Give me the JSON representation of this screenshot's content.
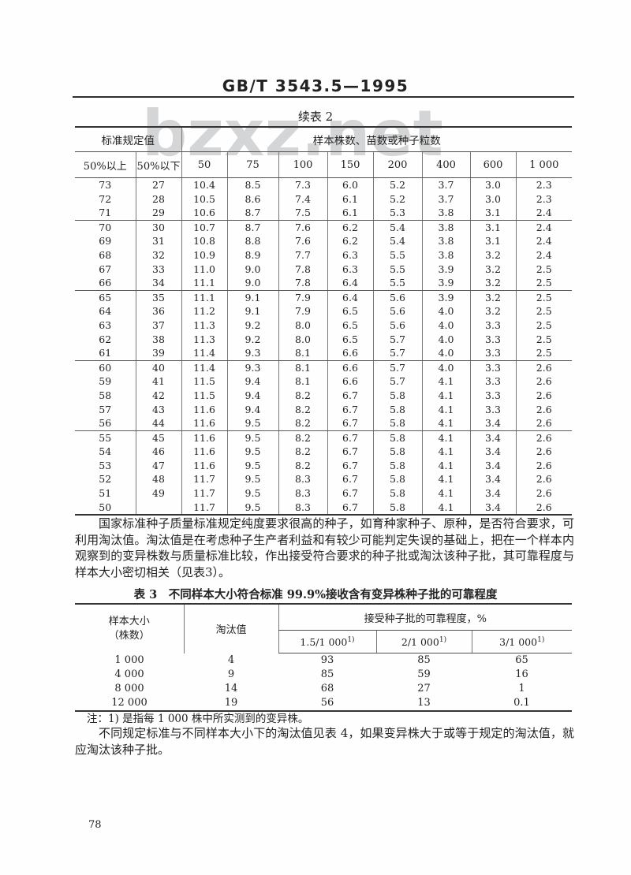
{
  "page": {
    "standard_number": "GB/T 3543.5—1995",
    "page_number": "78",
    "watermark_text": "bzxz.net",
    "watermark_color": "#d4d5d6",
    "text_color": "#222222"
  },
  "table2": {
    "title": "续表 2",
    "group_left": "标准规定值",
    "group_right": "样本株数、苗数或种子粒数",
    "columns": [
      "50%以上",
      "50%以下",
      "50",
      "75",
      "100",
      "150",
      "200",
      "400",
      "600",
      "1 000"
    ],
    "group_breaks": [
      2,
      7,
      12,
      17
    ],
    "rows": [
      [
        "73",
        "27",
        "10.4",
        "8.5",
        "7.3",
        "6.0",
        "5.2",
        "3.7",
        "3.0",
        "2.3"
      ],
      [
        "72",
        "28",
        "10.5",
        "8.6",
        "7.4",
        "6.1",
        "5.2",
        "3.7",
        "3.0",
        "2.3"
      ],
      [
        "71",
        "29",
        "10.6",
        "8.7",
        "7.5",
        "6.1",
        "5.3",
        "3.8",
        "3.1",
        "2.4"
      ],
      [
        "70",
        "30",
        "10.7",
        "8.7",
        "7.6",
        "6.2",
        "5.4",
        "3.8",
        "3.1",
        "2.4"
      ],
      [
        "69",
        "31",
        "10.8",
        "8.8",
        "7.6",
        "6.2",
        "5.4",
        "3.8",
        "3.1",
        "2.4"
      ],
      [
        "68",
        "32",
        "10.9",
        "8.9",
        "7.7",
        "6.3",
        "5.5",
        "3.8",
        "3.2",
        "2.4"
      ],
      [
        "67",
        "33",
        "11.0",
        "9.0",
        "7.8",
        "6.3",
        "5.5",
        "3.9",
        "3.2",
        "2.5"
      ],
      [
        "66",
        "34",
        "11.1",
        "9.0",
        "7.8",
        "6.4",
        "5.5",
        "3.9",
        "3.2",
        "2.5"
      ],
      [
        "65",
        "35",
        "11.1",
        "9.1",
        "7.9",
        "6.4",
        "5.6",
        "3.9",
        "3.2",
        "2.5"
      ],
      [
        "64",
        "36",
        "11.2",
        "9.1",
        "7.9",
        "6.5",
        "5.6",
        "4.0",
        "3.2",
        "2.5"
      ],
      [
        "63",
        "37",
        "11.3",
        "9.2",
        "8.0",
        "6.5",
        "5.6",
        "4.0",
        "3.3",
        "2.5"
      ],
      [
        "62",
        "38",
        "11.3",
        "9.2",
        "8.0",
        "6.5",
        "5.7",
        "4.0",
        "3.3",
        "2.5"
      ],
      [
        "61",
        "39",
        "11.4",
        "9.3",
        "8.1",
        "6.6",
        "5.7",
        "4.0",
        "3.3",
        "2.5"
      ],
      [
        "60",
        "40",
        "11.4",
        "9.3",
        "8.1",
        "6.6",
        "5.7",
        "4.0",
        "3.3",
        "2.6"
      ],
      [
        "59",
        "41",
        "11.5",
        "9.4",
        "8.1",
        "6.6",
        "5.7",
        "4.1",
        "3.3",
        "2.6"
      ],
      [
        "58",
        "42",
        "11.5",
        "9.4",
        "8.2",
        "6.7",
        "5.8",
        "4.1",
        "3.3",
        "2.6"
      ],
      [
        "57",
        "43",
        "11.6",
        "9.4",
        "8.2",
        "6.7",
        "5.8",
        "4.1",
        "3.3",
        "2.6"
      ],
      [
        "56",
        "44",
        "11.6",
        "9.5",
        "8.2",
        "6.7",
        "5.8",
        "4.1",
        "3.4",
        "2.6"
      ],
      [
        "55",
        "45",
        "11.6",
        "9.5",
        "8.2",
        "6.7",
        "5.8",
        "4.1",
        "3.4",
        "2.6"
      ],
      [
        "54",
        "46",
        "11.6",
        "9.5",
        "8.2",
        "6.7",
        "5.8",
        "4.1",
        "3.4",
        "2.6"
      ],
      [
        "53",
        "47",
        "11.6",
        "9.5",
        "8.2",
        "6.7",
        "5.8",
        "4.1",
        "3.4",
        "2.6"
      ],
      [
        "52",
        "48",
        "11.7",
        "9.5",
        "8.3",
        "6.7",
        "5.8",
        "4.1",
        "3.4",
        "2.6"
      ],
      [
        "51",
        "49",
        "11.7",
        "9.5",
        "8.3",
        "6.7",
        "5.8",
        "4.1",
        "3.4",
        "2.6"
      ],
      [
        "50",
        "",
        "11.7",
        "9.5",
        "8.3",
        "6.7",
        "5.8",
        "4.1",
        "3.4",
        "2.6"
      ]
    ]
  },
  "paragraphs": {
    "p1": "国家标准种子质量标准规定纯度要求很高的种子，如育种家种子、原种，是否符合要求，可利用淘汰值。淘汰值是在考虑种子生产者利益和有较少可能判定失误的基础上，把在一个样本内观察到的变异株数与质量标准比较，作出接受符合要求的种子批或淘汰该种子批，其可靠程度与样本大小密切相关（见表3）。",
    "note": "注：1) 是指每 1 000 株中所实测到的变异株。",
    "p2": "不同规定标准与不同样本大小下的淘汰值见表 4，如果变异株大于或等于规定的淘汰值，就应淘汰该种子批。"
  },
  "table3": {
    "title": "表 3　不同样本大小符合标准 99.9%接收含有变异株种子批的可靠程度",
    "col1_line1": "样本大小",
    "col1_line2": "（株数）",
    "col2_header": "淘汰值",
    "group_header": "接受种子批的可靠程度，%",
    "subcols": [
      {
        "base": "1.5/1 000",
        "sup": "1)"
      },
      {
        "base": "2/1 000",
        "sup": "1)"
      },
      {
        "base": "3/1 000",
        "sup": "1)"
      }
    ],
    "rows": [
      [
        "1 000",
        "4",
        "93",
        "85",
        "65"
      ],
      [
        "4 000",
        "9",
        "85",
        "59",
        "16"
      ],
      [
        "8 000",
        "14",
        "68",
        "27",
        "1"
      ],
      [
        "12 000",
        "19",
        "56",
        "13",
        "0.1"
      ]
    ]
  }
}
